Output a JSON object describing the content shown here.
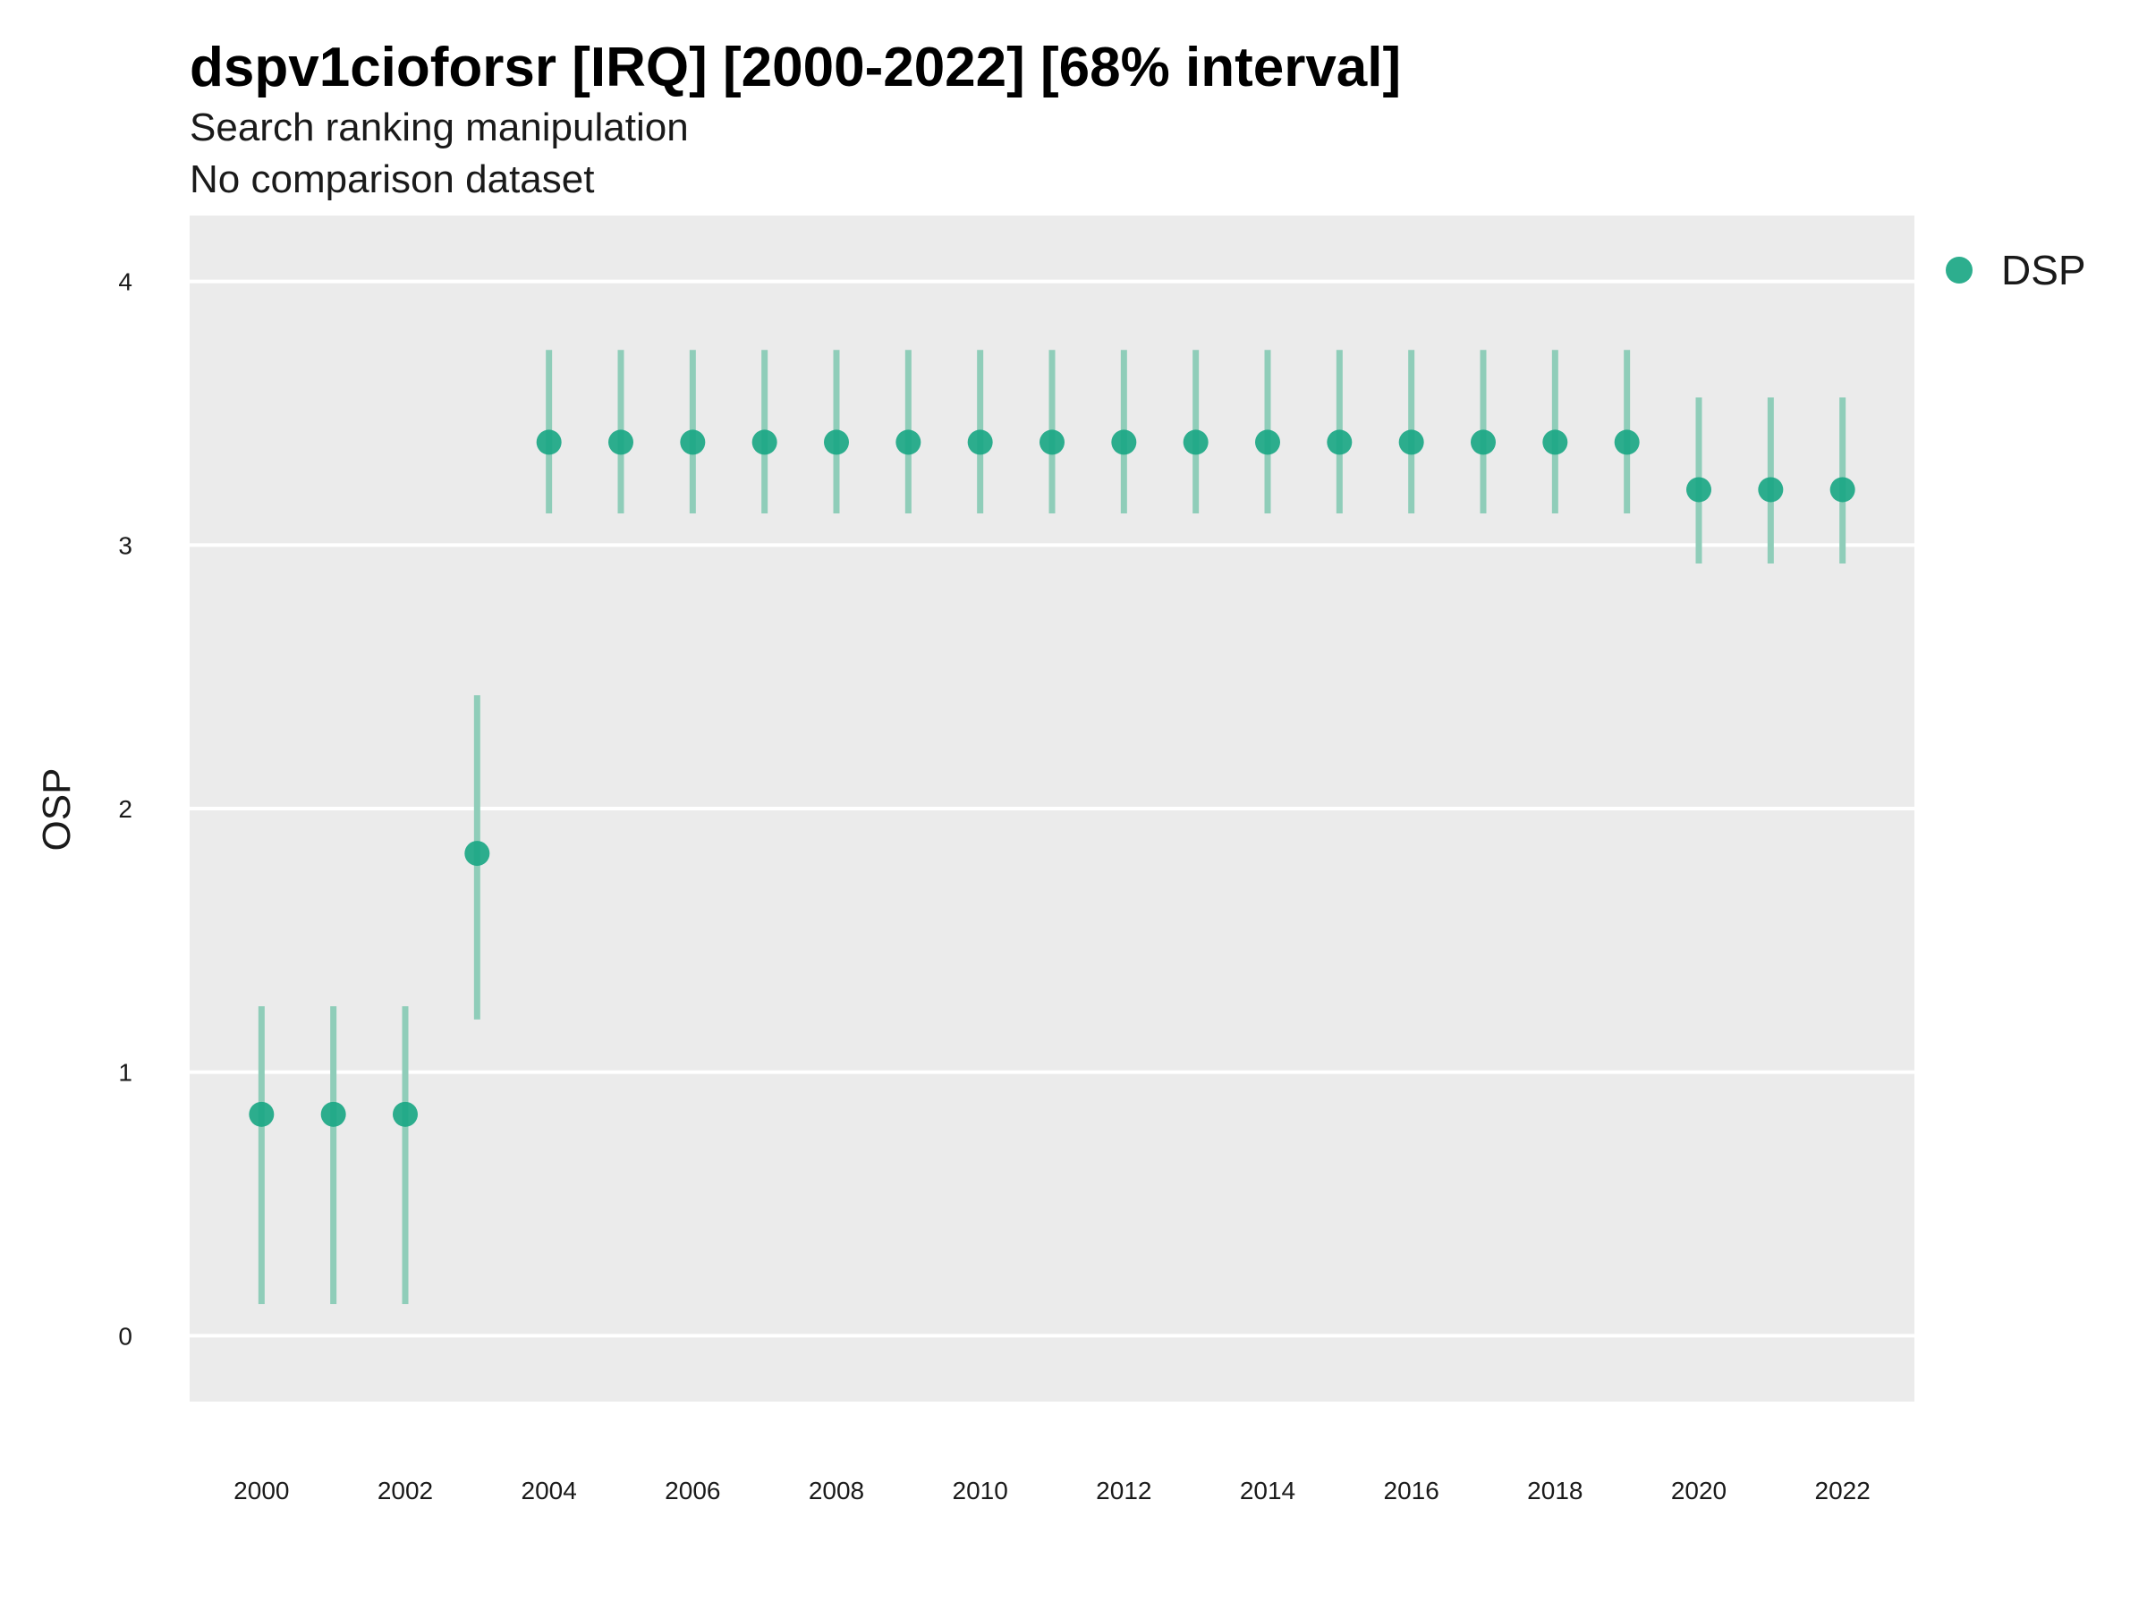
{
  "title": "dspv1cioforsr [IRQ] [2000-2022] [68% interval]",
  "subtitle_1": "Search ranking manipulation",
  "subtitle_2": "No comparison dataset",
  "colors": {
    "point": "#1ba784",
    "interval": "#8fcdb9",
    "panel": "#ebebeb",
    "grid": "#ffffff"
  },
  "chart_data": {
    "type": "scatter",
    "title": "dspv1cioforsr [IRQ] [2000-2022] [68% interval]",
    "ylabel": "OSP",
    "xlabel": "",
    "ylim": [
      -0.25,
      4.25
    ],
    "xlim": [
      1999,
      2023
    ],
    "y_ticks": [
      0,
      1,
      2,
      3,
      4
    ],
    "x_ticks": [
      2000,
      2002,
      2004,
      2006,
      2008,
      2010,
      2012,
      2014,
      2016,
      2018,
      2020,
      2022
    ],
    "grid": true,
    "legend_position": "right",
    "series": [
      {
        "name": "DSP",
        "x": [
          2000,
          2001,
          2002,
          2003,
          2004,
          2005,
          2006,
          2007,
          2008,
          2009,
          2010,
          2011,
          2012,
          2013,
          2014,
          2015,
          2016,
          2017,
          2018,
          2019,
          2020,
          2021,
          2022
        ],
        "y": [
          0.84,
          0.84,
          0.84,
          1.83,
          3.39,
          3.39,
          3.39,
          3.39,
          3.39,
          3.39,
          3.39,
          3.39,
          3.39,
          3.39,
          3.39,
          3.39,
          3.39,
          3.39,
          3.39,
          3.39,
          3.21,
          3.21,
          3.21
        ],
        "lower": [
          0.12,
          0.12,
          0.12,
          1.2,
          3.12,
          3.12,
          3.12,
          3.12,
          3.12,
          3.12,
          3.12,
          3.12,
          3.12,
          3.12,
          3.12,
          3.12,
          3.12,
          3.12,
          3.12,
          3.12,
          2.93,
          2.93,
          2.93
        ],
        "upper": [
          1.25,
          1.25,
          1.25,
          2.43,
          3.74,
          3.74,
          3.74,
          3.74,
          3.74,
          3.74,
          3.74,
          3.74,
          3.74,
          3.74,
          3.74,
          3.74,
          3.74,
          3.74,
          3.74,
          3.74,
          3.56,
          3.56,
          3.56
        ]
      }
    ]
  }
}
